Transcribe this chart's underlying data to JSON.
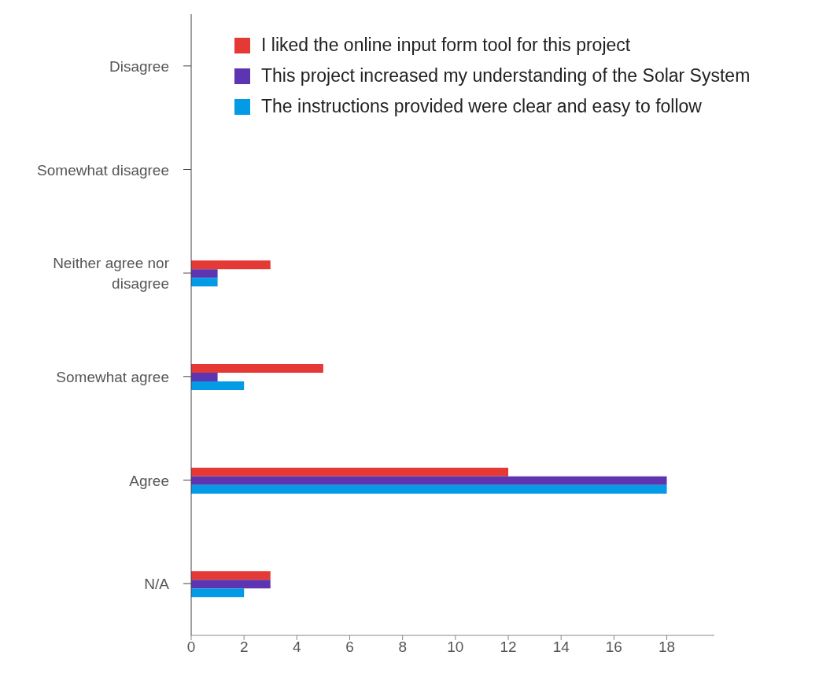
{
  "chart_data": {
    "type": "bar",
    "orientation": "horizontal",
    "categories": [
      "Disagree",
      "Somewhat disagree",
      "Neither agree nor disagree",
      "Somewhat agree",
      "Agree",
      "N/A"
    ],
    "series": [
      {
        "name": "I liked the online input form tool for this project",
        "color": "#e53935",
        "values": [
          0,
          0,
          3,
          5,
          12,
          3
        ]
      },
      {
        "name": "This project increased my understanding of the Solar System",
        "color": "#5e35b1",
        "values": [
          0,
          0,
          1,
          1,
          18,
          3
        ]
      },
      {
        "name": "The instructions provided were clear and easy to follow",
        "color": "#039be5",
        "values": [
          0,
          0,
          1,
          2,
          18,
          2
        ]
      }
    ],
    "xlim": [
      0,
      19.8
    ],
    "xticks": [
      0,
      2,
      4,
      6,
      8,
      10,
      12,
      14,
      16,
      18
    ],
    "grid": false,
    "legend": "top"
  }
}
